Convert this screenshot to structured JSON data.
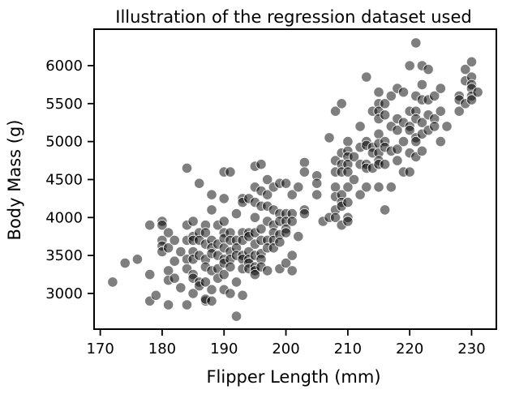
{
  "chart_data": {
    "type": "scatter",
    "title": "Illustration of the regression dataset used",
    "xlabel": "Flipper Length (mm)",
    "ylabel": "Body Mass (g)",
    "xlim": [
      169,
      234
    ],
    "ylim": [
      2530,
      6480
    ],
    "xticks": [
      170,
      180,
      190,
      200,
      210,
      220,
      230
    ],
    "yticks": [
      3000,
      3500,
      4000,
      4500,
      5000,
      5500,
      6000
    ],
    "grid": false,
    "legend": "none",
    "marker_color": "#000000",
    "marker_alpha": 0.5,
    "marker_edge": "#ffffff",
    "points": [
      [
        172,
        3150
      ],
      [
        174,
        3400
      ],
      [
        176,
        3450
      ],
      [
        178,
        3900
      ],
      [
        178,
        3250
      ],
      [
        178,
        2900
      ],
      [
        179,
        2975
      ],
      [
        180,
        3950
      ],
      [
        180,
        3900
      ],
      [
        180,
        3700
      ],
      [
        180,
        3625
      ],
      [
        180,
        3550
      ],
      [
        181,
        3800
      ],
      [
        181,
        3600
      ],
      [
        181,
        3300
      ],
      [
        181,
        3175
      ],
      [
        181,
        2850
      ],
      [
        182,
        3700
      ],
      [
        182,
        3425
      ],
      [
        182,
        3200
      ],
      [
        183,
        3550
      ],
      [
        183,
        3075
      ],
      [
        184,
        4650
      ],
      [
        184,
        3900
      ],
      [
        184,
        3700
      ],
      [
        184,
        3450
      ],
      [
        184,
        3325
      ],
      [
        184,
        2850
      ],
      [
        185,
        3950
      ],
      [
        185,
        3750
      ],
      [
        185,
        3700
      ],
      [
        185,
        3550
      ],
      [
        185,
        3450
      ],
      [
        185,
        3250
      ],
      [
        185,
        3200
      ],
      [
        185,
        3000
      ],
      [
        186,
        4450
      ],
      [
        186,
        3800
      ],
      [
        186,
        3700
      ],
      [
        186,
        3500
      ],
      [
        186,
        3150
      ],
      [
        186,
        3100
      ],
      [
        187,
        3900
      ],
      [
        187,
        3800
      ],
      [
        187,
        3650
      ],
      [
        187,
        3450
      ],
      [
        187,
        3350
      ],
      [
        187,
        3150
      ],
      [
        187,
        2900
      ],
      [
        187,
        2925
      ],
      [
        188,
        4300
      ],
      [
        188,
        4100
      ],
      [
        188,
        3700
      ],
      [
        188,
        3600
      ],
      [
        188,
        3525
      ],
      [
        188,
        3300
      ],
      [
        188,
        3050
      ],
      [
        188,
        2900
      ],
      [
        189,
        3900
      ],
      [
        189,
        3650
      ],
      [
        189,
        3500
      ],
      [
        189,
        3325
      ],
      [
        189,
        3200
      ],
      [
        190,
        4600
      ],
      [
        190,
        4250
      ],
      [
        190,
        3950
      ],
      [
        190,
        3800
      ],
      [
        190,
        3725
      ],
      [
        190,
        3600
      ],
      [
        190,
        3450
      ],
      [
        190,
        3400
      ],
      [
        190,
        3250
      ],
      [
        190,
        3050
      ],
      [
        191,
        4600
      ],
      [
        191,
        3800
      ],
      [
        191,
        3700
      ],
      [
        191,
        3550
      ],
      [
        191,
        3450
      ],
      [
        191,
        3350
      ],
      [
        191,
        3000
      ],
      [
        192,
        4050
      ],
      [
        192,
        3700
      ],
      [
        192,
        3600
      ],
      [
        192,
        3500
      ],
      [
        192,
        3150
      ],
      [
        192,
        2700
      ],
      [
        193,
        4250
      ],
      [
        193,
        4200
      ],
      [
        193,
        3800
      ],
      [
        193,
        3700
      ],
      [
        193,
        3500
      ],
      [
        193,
        3450
      ],
      [
        193,
        3325
      ],
      [
        193,
        2975
      ],
      [
        194,
        4250
      ],
      [
        194,
        3800
      ],
      [
        194,
        3750
      ],
      [
        194,
        3550
      ],
      [
        194,
        3450
      ],
      [
        194,
        3400
      ],
      [
        194,
        3325
      ],
      [
        195,
        4675
      ],
      [
        195,
        4400
      ],
      [
        195,
        4200
      ],
      [
        195,
        4000
      ],
      [
        195,
        3800
      ],
      [
        195,
        3650
      ],
      [
        195,
        3500
      ],
      [
        195,
        3350
      ],
      [
        195,
        3300
      ],
      [
        195,
        3250
      ],
      [
        196,
        4700
      ],
      [
        196,
        4350
      ],
      [
        196,
        4150
      ],
      [
        196,
        3850
      ],
      [
        196,
        3700
      ],
      [
        196,
        3525
      ],
      [
        196,
        3450
      ],
      [
        196,
        3350
      ],
      [
        197,
        4500
      ],
      [
        197,
        4300
      ],
      [
        197,
        4150
      ],
      [
        197,
        3950
      ],
      [
        197,
        3700
      ],
      [
        197,
        3600
      ],
      [
        197,
        3300
      ],
      [
        198,
        4400
      ],
      [
        198,
        4100
      ],
      [
        198,
        3900
      ],
      [
        198,
        3800
      ],
      [
        198,
        3700
      ],
      [
        198,
        3600
      ],
      [
        199,
        4450
      ],
      [
        199,
        4050
      ],
      [
        199,
        3950
      ],
      [
        199,
        3775
      ],
      [
        199,
        3675
      ],
      [
        199,
        3325
      ],
      [
        200,
        4450
      ],
      [
        200,
        4050
      ],
      [
        200,
        3950
      ],
      [
        200,
        3850
      ],
      [
        200,
        3800
      ],
      [
        200,
        3400
      ],
      [
        201,
        4300
      ],
      [
        201,
        4050
      ],
      [
        201,
        3950
      ],
      [
        201,
        3500
      ],
      [
        201,
        3300
      ],
      [
        202,
        4400
      ],
      [
        202,
        3750
      ],
      [
        203,
        4725
      ],
      [
        203,
        4600
      ],
      [
        203,
        4100
      ],
      [
        203,
        4050
      ],
      [
        205,
        4550
      ],
      [
        205,
        4450
      ],
      [
        205,
        4300
      ],
      [
        206,
        3950
      ],
      [
        207,
        5050
      ],
      [
        207,
        4000
      ],
      [
        208,
        5400
      ],
      [
        208,
        4750
      ],
      [
        208,
        4600
      ],
      [
        208,
        4400
      ],
      [
        208,
        4275
      ],
      [
        208,
        4100
      ],
      [
        208,
        4000
      ],
      [
        209,
        5500
      ],
      [
        209,
        4850
      ],
      [
        209,
        4700
      ],
      [
        209,
        4600
      ],
      [
        209,
        4300
      ],
      [
        209,
        4200
      ],
      [
        209,
        4150
      ],
      [
        209,
        3900
      ],
      [
        210,
        5000
      ],
      [
        210,
        4875
      ],
      [
        210,
        4800
      ],
      [
        210,
        4700
      ],
      [
        210,
        4600
      ],
      [
        210,
        4400
      ],
      [
        210,
        4200
      ],
      [
        210,
        4000
      ],
      [
        210,
        3950
      ],
      [
        211,
        4800
      ],
      [
        211,
        4500
      ],
      [
        212,
        5200
      ],
      [
        212,
        4925
      ],
      [
        212,
        4700
      ],
      [
        212,
        4300
      ],
      [
        213,
        5850
      ],
      [
        213,
        5000
      ],
      [
        213,
        4950
      ],
      [
        213,
        4700
      ],
      [
        213,
        4650
      ],
      [
        213,
        4400
      ],
      [
        214,
        5400
      ],
      [
        214,
        4925
      ],
      [
        214,
        4850
      ],
      [
        214,
        4650
      ],
      [
        215,
        5650
      ],
      [
        215,
        5500
      ],
      [
        215,
        5400
      ],
      [
        215,
        5300
      ],
      [
        215,
        5100
      ],
      [
        215,
        4975
      ],
      [
        215,
        4850
      ],
      [
        215,
        4750
      ],
      [
        215,
        4700
      ],
      [
        215,
        4400
      ],
      [
        216,
        5500
      ],
      [
        216,
        5350
      ],
      [
        216,
        5000
      ],
      [
        216,
        4925
      ],
      [
        216,
        4700
      ],
      [
        216,
        4100
      ],
      [
        217,
        5600
      ],
      [
        217,
        5200
      ],
      [
        217,
        4875
      ],
      [
        217,
        4400
      ],
      [
        218,
        5700
      ],
      [
        218,
        5300
      ],
      [
        218,
        5150
      ],
      [
        218,
        4900
      ],
      [
        218,
        4750
      ],
      [
        219,
        5650
      ],
      [
        219,
        5250
      ],
      [
        219,
        5000
      ],
      [
        219,
        4600
      ],
      [
        220,
        6000
      ],
      [
        220,
        5400
      ],
      [
        220,
        5200
      ],
      [
        220,
        5150
      ],
      [
        220,
        4850
      ],
      [
        220,
        4600
      ],
      [
        221,
        6300
      ],
      [
        221,
        5600
      ],
      [
        221,
        5400
      ],
      [
        221,
        5300
      ],
      [
        221,
        5050
      ],
      [
        221,
        5000
      ],
      [
        221,
        4800
      ],
      [
        222,
        6000
      ],
      [
        222,
        5750
      ],
      [
        222,
        5550
      ],
      [
        222,
        5250
      ],
      [
        222,
        5100
      ],
      [
        222,
        4875
      ],
      [
        223,
        5950
      ],
      [
        223,
        5550
      ],
      [
        223,
        5350
      ],
      [
        223,
        5150
      ],
      [
        224,
        5600
      ],
      [
        224,
        5300
      ],
      [
        224,
        5200
      ],
      [
        225,
        5700
      ],
      [
        225,
        5400
      ],
      [
        225,
        5000
      ],
      [
        226,
        5200
      ],
      [
        228,
        5600
      ],
      [
        228,
        5550
      ],
      [
        228,
        5400
      ],
      [
        229,
        5950
      ],
      [
        229,
        5800
      ],
      [
        229,
        5500
      ],
      [
        230,
        6050
      ],
      [
        230,
        5850
      ],
      [
        230,
        5750
      ],
      [
        230,
        5700
      ],
      [
        230,
        5600
      ],
      [
        230,
        5550
      ],
      [
        231,
        5650
      ]
    ]
  }
}
